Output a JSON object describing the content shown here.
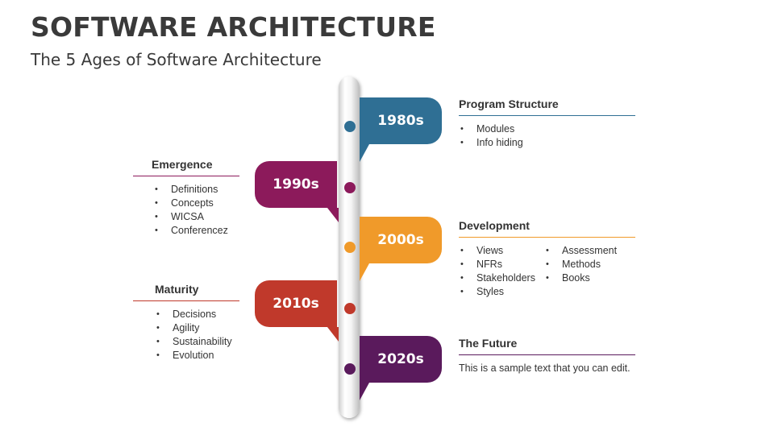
{
  "title": "SOFTWARE ARCHITECTURE",
  "subtitle": "The 5 Ages of Software Architecture",
  "eras": [
    {
      "label": "1980s",
      "color": "#2f6f94",
      "heading": "Program Structure",
      "items": [
        "Modules",
        "Info hiding"
      ]
    },
    {
      "label": "1990s",
      "color": "#8c1a5b",
      "heading": "Emergence",
      "items": [
        "Definitions",
        "Concepts",
        "WICSA",
        "Conferencez"
      ]
    },
    {
      "label": "2000s",
      "color": "#f09a2a",
      "heading": "Development",
      "items_col1": [
        "Views",
        "NFRs",
        "Stakeholders",
        "Styles"
      ],
      "items_col2": [
        "Assessment",
        "Methods",
        "Books"
      ]
    },
    {
      "label": "2010s",
      "color": "#c0392b",
      "heading": "Maturity",
      "items": [
        "Decisions",
        "Agility",
        "Sustainability",
        "Evolution"
      ]
    },
    {
      "label": "2020s",
      "color": "#5a1a5c",
      "heading": "The Future",
      "text": "This is a sample text that you can edit."
    }
  ]
}
